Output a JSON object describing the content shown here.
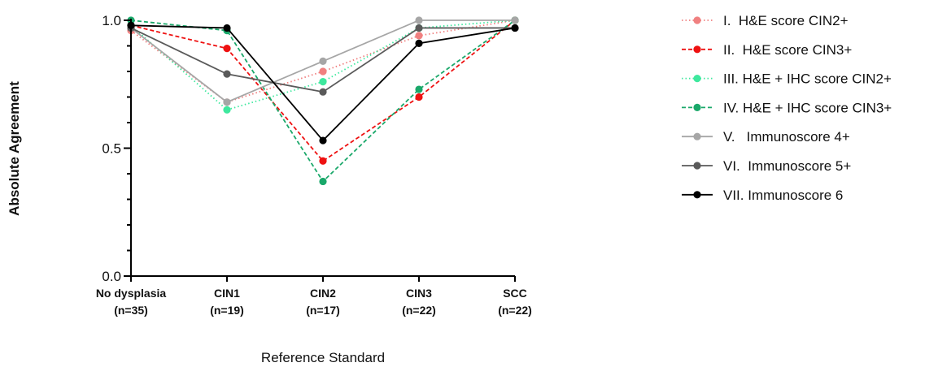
{
  "chart_data": {
    "type": "line",
    "xlabel": "Reference Standard",
    "ylabel": "Absolute Agreement",
    "ylim": [
      0,
      1
    ],
    "yticks": [
      "0.0",
      "0.5",
      "1.0"
    ],
    "categories": [
      {
        "name": "No dysplasia",
        "n": "(n=35)"
      },
      {
        "name": "CIN1",
        "n": "(n=19)"
      },
      {
        "name": "CIN2",
        "n": "(n=17)"
      },
      {
        "name": "CIN3",
        "n": "(n=22)"
      },
      {
        "name": "SCC",
        "n": "(n=22)"
      }
    ],
    "legend_position": "right",
    "series": [
      {
        "name": "I.  H&E score CIN2+",
        "color": "#f08080",
        "style": "dotted",
        "values": [
          0.96,
          0.68,
          0.8,
          0.94,
          1.0
        ]
      },
      {
        "name": "II.  H&E score CIN3+",
        "color": "#ee1111",
        "style": "dashed",
        "values": [
          0.98,
          0.89,
          0.45,
          0.7,
          1.0
        ]
      },
      {
        "name": "III. H&E + IHC score CIN2+",
        "color": "#3ee89e",
        "style": "dotted",
        "values": [
          0.98,
          0.65,
          0.76,
          0.97,
          1.0
        ]
      },
      {
        "name": "IV. H&E + IHC score CIN3+",
        "color": "#1aa86a",
        "style": "dashed",
        "values": [
          1.0,
          0.96,
          0.37,
          0.73,
          1.0
        ]
      },
      {
        "name": "V.   Immunoscore 4+",
        "color": "#a6a6a6",
        "style": "solid",
        "values": [
          0.97,
          0.68,
          0.84,
          1.0,
          1.0
        ]
      },
      {
        "name": "VI.  Immunoscore 5+",
        "color": "#5a5a5a",
        "style": "solid",
        "values": [
          0.97,
          0.79,
          0.72,
          0.97,
          0.97
        ]
      },
      {
        "name": "VII. Immunoscore 6",
        "color": "#000000",
        "style": "solid",
        "values": [
          0.98,
          0.97,
          0.53,
          0.91,
          0.97
        ]
      }
    ]
  }
}
